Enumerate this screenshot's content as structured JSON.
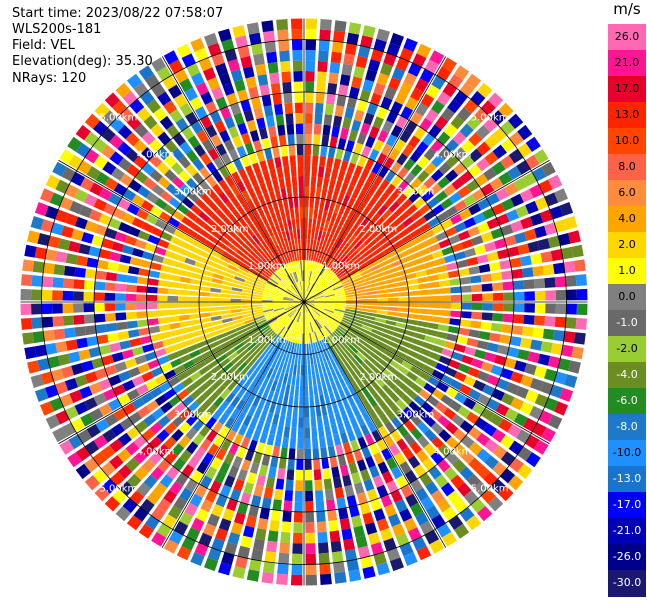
{
  "header": {
    "start_time": "Start time: 2023/08/22 07:58:07",
    "instrument": "WLS200s-181",
    "field": "Field: VEL",
    "elevation": "Elevation(deg): 35.30",
    "nrays": "NRays: 120"
  },
  "chart_data": {
    "type": "heatmap",
    "subtype": "ppi-radar",
    "field": "VEL",
    "unit": "m/s",
    "nrays": 120,
    "elevation_deg": 35.3,
    "range_rings_km": [
      1.0,
      2.0,
      3.0,
      4.0,
      5.0
    ],
    "ring_labels": [
      "1.00km",
      "2.00km",
      "3.00km",
      "4.00km",
      "5.00km"
    ],
    "max_range_km": 5.4,
    "radial_line_step_deg": 30,
    "colorbar": {
      "ticks": [
        "26.0",
        "21.0",
        "17.0",
        "13.0",
        "10.0",
        "8.0",
        "6.0",
        "4.0",
        "2.0",
        "1.0",
        "0.0",
        "-1.0",
        "-2.0",
        "-4.0",
        "-6.0",
        "-8.0",
        "-10.0",
        "-13.0",
        "-17.0",
        "-21.0",
        "-26.0",
        "-30.0"
      ],
      "colors": [
        "#ff69b4",
        "#ff1493",
        "#e8002a",
        "#ff2400",
        "#ff4500",
        "#ff6347",
        "#ff8c3c",
        "#ffa500",
        "#ffd700",
        "#ffff00",
        "#808080",
        "#696969",
        "#9acd32",
        "#6b8e23",
        "#228b22",
        "#1e7ac8",
        "#1e90ff",
        "#1874cd",
        "#0000ff",
        "#0000b4",
        "#00008b",
        "#191970"
      ]
    },
    "velocity_field": {
      "description": "Smooth velocity field to ~2.9 km; noisy beyond.",
      "sectors": [
        {
          "azimuth_from_deg": 300,
          "azimuth_to_deg": 60,
          "value": 13.0
        },
        {
          "azimuth_from_deg": 60,
          "azimuth_to_deg": 100,
          "value": 4.0
        },
        {
          "azimuth_from_deg": 100,
          "azimuth_to_deg": 150,
          "value": -4.0
        },
        {
          "azimuth_from_deg": 150,
          "azimuth_to_deg": 220,
          "value": -10.0
        },
        {
          "azimuth_from_deg": 220,
          "azimuth_to_deg": 250,
          "value": -4.0
        },
        {
          "azimuth_from_deg": 250,
          "azimuth_to_deg": 300,
          "value": 2.0
        }
      ],
      "near_range_km": 0.9,
      "near_range_value": 1.0,
      "clean_range_km": 2.9
    }
  }
}
